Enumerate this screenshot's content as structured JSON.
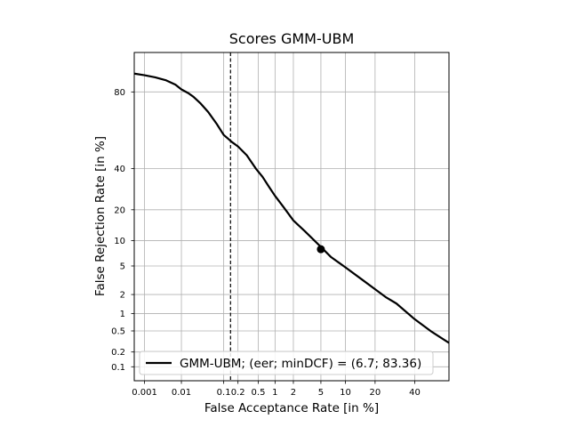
{
  "chart_data": {
    "type": "line",
    "title": "Scores GMM-UBM",
    "xlabel": "False Acceptance Rate [in %]",
    "ylabel": "False Rejection Rate [in %]",
    "x_scale": "probit",
    "y_scale": "probit",
    "xlim": [
      0.0005,
      60
    ],
    "ylim": [
      0.05,
      92
    ],
    "x_ticks": [
      {
        "value": 0.001,
        "label": "0.001"
      },
      {
        "value": 0.01,
        "label": "0.01"
      },
      {
        "value": 0.1,
        "label": "0.1"
      },
      {
        "value": 0.2,
        "label": "0.2"
      },
      {
        "value": 0.5,
        "label": "0.5"
      },
      {
        "value": 1,
        "label": "1"
      },
      {
        "value": 2,
        "label": "2"
      },
      {
        "value": 5,
        "label": "5"
      },
      {
        "value": 10,
        "label": "10"
      },
      {
        "value": 20,
        "label": "20"
      },
      {
        "value": 40,
        "label": "40"
      }
    ],
    "y_ticks": [
      {
        "value": 0.1,
        "label": "0.1"
      },
      {
        "value": 0.2,
        "label": "0.2"
      },
      {
        "value": 0.5,
        "label": "0.5"
      },
      {
        "value": 1,
        "label": "1"
      },
      {
        "value": 2,
        "label": "2"
      },
      {
        "value": 5,
        "label": "5"
      },
      {
        "value": 10,
        "label": "10"
      },
      {
        "value": 20,
        "label": "20"
      },
      {
        "value": 40,
        "label": "40"
      },
      {
        "value": 80,
        "label": "80"
      }
    ],
    "grid": true,
    "legend_position": "bottom",
    "series": [
      {
        "name": "GMM-UBM; (eer; minDCF) = (6.7; 83.36)",
        "color": "#000000",
        "x": [
          0.0005,
          0.001,
          0.002,
          0.004,
          0.007,
          0.01,
          0.015,
          0.02,
          0.03,
          0.045,
          0.07,
          0.1,
          0.15,
          0.2,
          0.3,
          0.45,
          0.6,
          0.8,
          1.0,
          1.4,
          2.0,
          3.0,
          5.0,
          6.7,
          10,
          15,
          20,
          25,
          30,
          40,
          50,
          60
        ],
        "y": [
          86.5,
          86.0,
          85.3,
          84.3,
          82.8,
          81.0,
          79.5,
          78.0,
          75.0,
          71.0,
          65.0,
          59.0,
          55.0,
          52.5,
          47.5,
          40.0,
          35.5,
          30.0,
          26.0,
          21.0,
          16.0,
          12.5,
          8.5,
          6.5,
          4.8,
          3.3,
          2.4,
          1.8,
          1.45,
          0.8,
          0.48,
          0.3
        ]
      }
    ],
    "markers": [
      {
        "x": 5.0,
        "y": 8.0,
        "color": "#000000"
      }
    ],
    "vlines": [
      {
        "x": 0.14,
        "style": "dashed",
        "color": "#000000"
      }
    ]
  }
}
